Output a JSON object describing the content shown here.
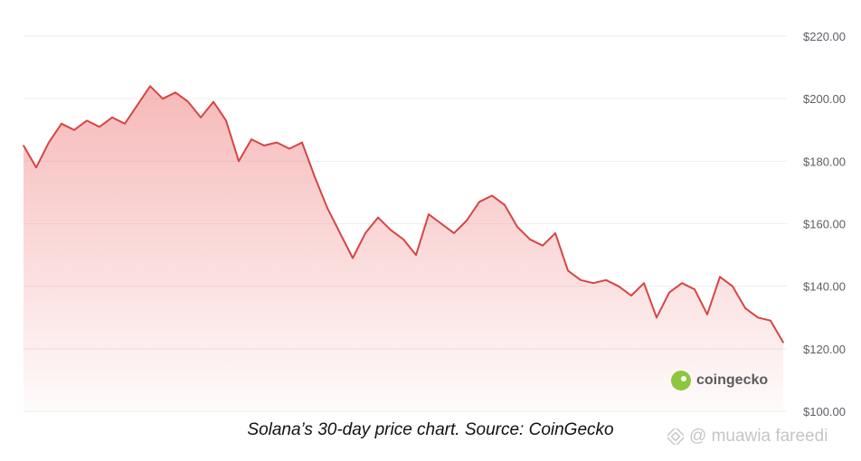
{
  "chart_data": {
    "type": "area",
    "title": "",
    "xlabel": "",
    "ylabel": "",
    "y_tick_labels": [
      "$220.00",
      "$200.00",
      "$180.00",
      "$160.00",
      "$140.00",
      "$120.00",
      "$100.00"
    ],
    "y_ticks": [
      220,
      200,
      180,
      160,
      140,
      120,
      100
    ],
    "ylim": [
      100,
      220
    ],
    "x_range_days": [
      0,
      30
    ],
    "grid": true,
    "colors": {
      "line": "#d64545",
      "fill": "#f08080",
      "grid": "#eeeeee"
    },
    "series": [
      {
        "x": [
          0,
          0.5,
          1,
          1.5,
          2,
          2.5,
          3,
          3.5,
          4,
          4.5,
          5,
          5.5,
          6,
          6.5,
          7,
          7.5,
          8,
          8.5,
          9,
          9.5,
          10,
          10.5,
          11,
          11.5,
          12,
          12.5,
          13,
          13.5,
          14,
          14.5,
          15,
          15.5,
          16,
          16.5,
          17,
          17.5,
          18,
          18.5,
          19,
          19.5,
          20,
          20.5,
          21,
          21.5,
          22,
          22.5,
          23,
          23.5,
          24,
          24.5,
          25,
          25.5,
          26,
          26.5,
          27,
          27.5,
          28,
          28.5,
          29,
          29.5,
          30
        ],
        "values": [
          185,
          178,
          186,
          192,
          190,
          193,
          191,
          194,
          192,
          198,
          204,
          200,
          202,
          199,
          194,
          199,
          193,
          180,
          187,
          185,
          186,
          184,
          186,
          175,
          165,
          157,
          149,
          157,
          162,
          158,
          155,
          150,
          163,
          160,
          157,
          161,
          167,
          169,
          166,
          159,
          155,
          153,
          157,
          145,
          142,
          141,
          142,
          140,
          137,
          141,
          130,
          138,
          141,
          139,
          131,
          143,
          140,
          133,
          130,
          129,
          122
        ]
      }
    ]
  },
  "brand": {
    "name": "coingecko",
    "logo_icon": "gecko-logo-icon"
  },
  "caption": "Solana’s 30-day price chart. Source: CoinGecko",
  "watermark": {
    "text": "@ muawia fareedi",
    "icon": "binance-logo-icon"
  }
}
